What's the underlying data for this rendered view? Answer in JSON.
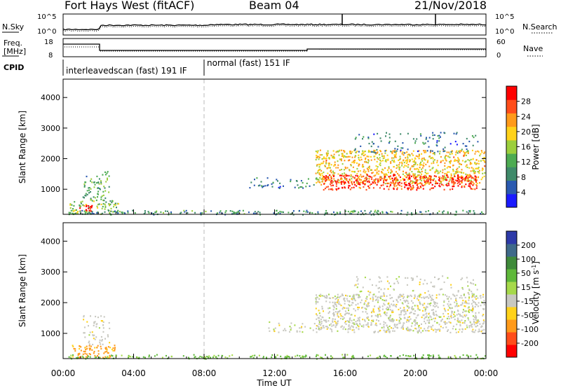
{
  "header": {
    "station": "Fort Hays West (fitACF)",
    "beam": "Beam 04",
    "date": "21/Nov/2018"
  },
  "noise_panel": {
    "left_label": "N.Sky",
    "right_label": "N.Search",
    "left_ticks": [
      "10^5",
      "10^0"
    ],
    "right_ticks": [
      "10^5",
      "10^0"
    ]
  },
  "freq_panel": {
    "left_label_line1": "Freq.",
    "left_label_line2": "[MHz]",
    "right_label": "Nave",
    "left_ticks": [
      "18",
      "8"
    ],
    "right_ticks": [
      "60",
      "0"
    ]
  },
  "cpid_panel": {
    "label": "CPID",
    "segments": [
      {
        "text": "interleavedscan (fast) 191 IF",
        "start_hour": 0,
        "end_hour": 8
      },
      {
        "text": "normal (fast) 151 IF",
        "start_hour": 8,
        "end_hour": 24
      }
    ]
  },
  "time_axis": {
    "ticks": [
      "00:00",
      "04:00",
      "08:00",
      "12:00",
      "16:00",
      "20:00",
      "00:00"
    ],
    "label": "Time UT"
  },
  "chart_data": [
    {
      "type": "heatmap",
      "panel": "power",
      "ylabel": "Slant Range [km]",
      "yticks": [
        1000,
        2000,
        3000,
        4000
      ],
      "ylim": [
        180,
        4600
      ],
      "xlim": [
        0,
        24
      ],
      "colorbar": {
        "label": "Power [dB]",
        "ticks": [
          "4",
          "8",
          "12",
          "16",
          "20",
          "24",
          "28"
        ],
        "colors": [
          "#1a1aff",
          "#2a5ab0",
          "#3f8a6a",
          "#4dab52",
          "#9ccf3c",
          "#ffd21a",
          "#ff9a1a",
          "#ff4d1a",
          "#ff0000"
        ]
      },
      "echo_regions": [
        {
          "t0": 0.3,
          "t1": 3.2,
          "r0": 200,
          "r1": 650,
          "power_dB": 14,
          "density": 0.55
        },
        {
          "t0": 0.9,
          "t1": 1.7,
          "r0": 250,
          "r1": 520,
          "power_dB": 28,
          "density": 0.8
        },
        {
          "t0": 1.1,
          "t1": 2.6,
          "r0": 650,
          "r1": 1600,
          "power_dB": 12,
          "density": 0.45
        },
        {
          "t0": 0.3,
          "t1": 24.0,
          "r0": 190,
          "r1": 330,
          "power_dB": 10,
          "density": 0.6
        },
        {
          "t0": 10.5,
          "t1": 14.5,
          "r0": 1050,
          "r1": 1400,
          "power_dB": 8,
          "density": 0.3
        },
        {
          "t0": 14.3,
          "t1": 23.9,
          "r0": 1200,
          "r1": 2300,
          "power_dB": 20,
          "density": 0.75
        },
        {
          "t0": 14.6,
          "t1": 23.5,
          "r0": 1000,
          "r1": 1500,
          "power_dB": 28,
          "density": 0.85
        },
        {
          "t0": 16.5,
          "t1": 23.5,
          "r0": 2200,
          "r1": 2900,
          "power_dB": 8,
          "density": 0.2
        }
      ]
    },
    {
      "type": "heatmap",
      "panel": "velocity",
      "ylabel": "Slant Range [km]",
      "yticks": [
        1000,
        2000,
        3000,
        4000
      ],
      "ylim": [
        180,
        4600
      ],
      "xlim": [
        0,
        24
      ],
      "colorbar": {
        "label": "Velocity [m s-1]",
        "ticks": [
          "200",
          "100",
          "50",
          "15",
          "-15",
          "-50",
          "-100",
          "-200"
        ],
        "colors": [
          "#2d3aa8",
          "#3f6a8a",
          "#3f8a3a",
          "#5fb83a",
          "#a6d94a",
          "#c8c8c0",
          "#ffd21a",
          "#ff9a1a",
          "#ff4d1a",
          "#ff0000"
        ]
      },
      "echo_regions": [
        {
          "t0": 0.3,
          "t1": 3.0,
          "r0": 200,
          "r1": 650,
          "velocity_ms": -60,
          "density": 0.6
        },
        {
          "t0": 1.1,
          "t1": 2.6,
          "r0": 650,
          "r1": 1600,
          "velocity_ms": 0,
          "density": 0.35
        },
        {
          "t0": 0.3,
          "t1": 24.0,
          "r0": 190,
          "r1": 330,
          "velocity_ms": 40,
          "density": 0.55
        },
        {
          "t0": 11.5,
          "t1": 14.5,
          "r0": 1050,
          "r1": 1400,
          "velocity_ms": 0,
          "density": 0.3
        },
        {
          "t0": 14.3,
          "t1": 23.9,
          "r0": 1050,
          "r1": 2300,
          "velocity_ms": 0,
          "density": 0.7
        },
        {
          "t0": 16.5,
          "t1": 23.5,
          "r0": 2200,
          "r1": 2900,
          "velocity_ms": 0,
          "density": 0.2
        }
      ]
    }
  ]
}
